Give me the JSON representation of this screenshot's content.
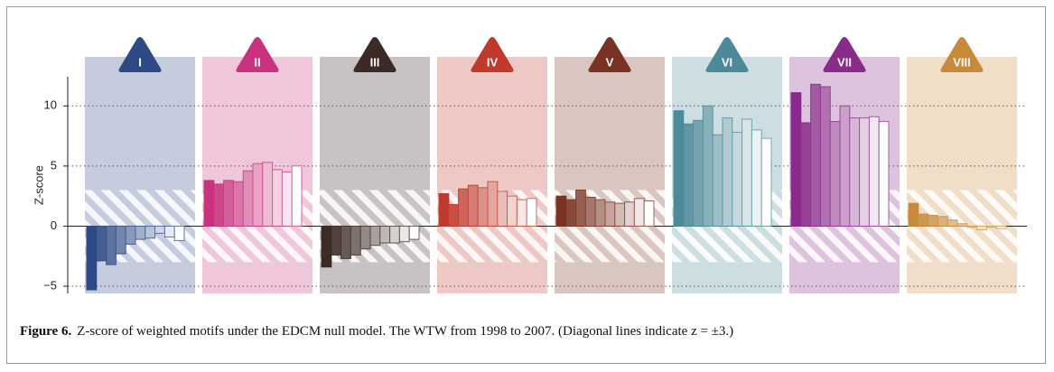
{
  "chart_data": {
    "type": "grouped-bar",
    "ylabel": "Z-score",
    "ylim": [
      -5.6,
      12.2
    ],
    "yticks": [
      {
        "value": -5,
        "label": "−5"
      },
      0,
      5,
      10
    ],
    "grid": true,
    "hatch_band": [
      -3,
      3
    ],
    "groups": [
      {
        "name": "I",
        "color": "#2e4a86",
        "values": [
          -5.3,
          -2.9,
          -3.2,
          -2.3,
          -1.5,
          -1.1,
          -1.0,
          -0.6,
          -0.9,
          -1.2
        ]
      },
      {
        "name": "II",
        "color": "#c8327e",
        "values": [
          3.8,
          3.5,
          3.8,
          3.7,
          4.6,
          5.2,
          5.3,
          4.7,
          4.5,
          5.0
        ]
      },
      {
        "name": "III",
        "color": "#3b2a25",
        "values": [
          -3.4,
          -2.4,
          -2.7,
          -2.4,
          -1.9,
          -1.6,
          -1.4,
          -1.4,
          -1.3,
          -1.1
        ]
      },
      {
        "name": "IV",
        "color": "#c0392b",
        "values": [
          2.7,
          1.8,
          3.1,
          3.4,
          3.2,
          3.7,
          2.9,
          2.5,
          2.2,
          2.3
        ]
      },
      {
        "name": "V",
        "color": "#7a3322",
        "values": [
          2.5,
          2.2,
          3.0,
          2.4,
          2.2,
          2.0,
          1.9,
          2.0,
          2.3,
          2.1
        ]
      },
      {
        "name": "VI",
        "color": "#4d8a99",
        "values": [
          9.6,
          8.5,
          8.8,
          10.0,
          7.6,
          9.0,
          7.8,
          8.9,
          8.0,
          7.3
        ]
      },
      {
        "name": "VII",
        "color": "#8a2a8a",
        "values": [
          11.1,
          8.6,
          11.8,
          11.6,
          8.7,
          10.0,
          9.0,
          9.0,
          9.1,
          8.7
        ]
      },
      {
        "name": "VIII",
        "color": "#c88a3a",
        "values": [
          1.9,
          1.0,
          0.9,
          0.8,
          0.5,
          0.2,
          -0.1,
          -0.3,
          -0.1,
          -0.2
        ]
      }
    ]
  },
  "caption": {
    "label": "Figure 6.",
    "text": "Z-score of weighted motifs under the EDCM null model. The WTW from 1998 to 2007. (Diagonal lines indicate z = ±3.)"
  }
}
